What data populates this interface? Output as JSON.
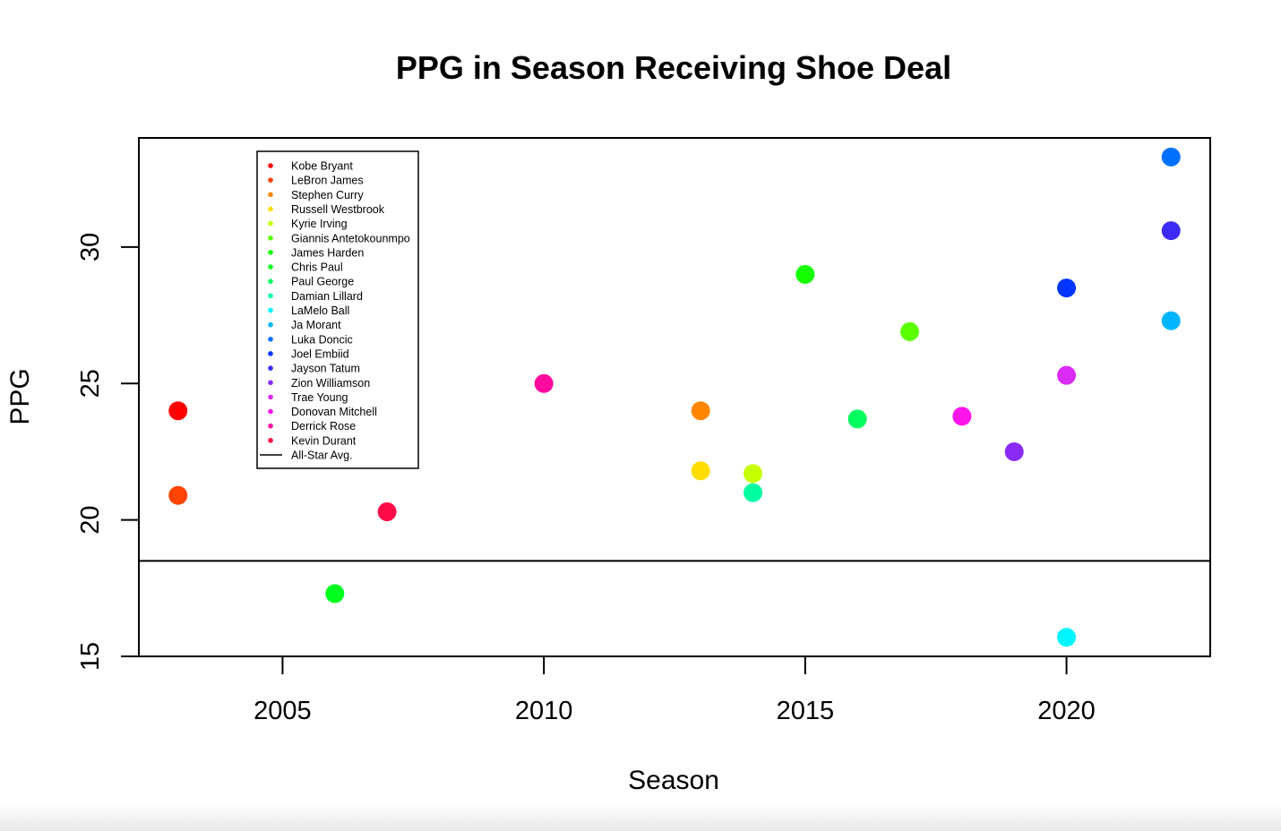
{
  "chart_data": {
    "type": "scatter",
    "title": "PPG in Season Receiving Shoe Deal",
    "xlabel": "Season",
    "ylabel": "PPG",
    "xlim": [
      2002.25,
      2022.75
    ],
    "ylim": [
      15,
      34
    ],
    "xticks": [
      2005,
      2010,
      2015,
      2020
    ],
    "yticks": [
      15,
      20,
      25,
      30
    ],
    "grid": false,
    "legend_position": "top-left",
    "reference_line": {
      "name": "All-Star Avg.",
      "y": 18.5,
      "color": "#000000"
    },
    "series": [
      {
        "name": "Kobe Bryant",
        "color": "#FF0000",
        "x": 2003,
        "y": 24.0
      },
      {
        "name": "LeBron James",
        "color": "#FF4300",
        "x": 2003,
        "y": 20.9
      },
      {
        "name": "Stephen Curry",
        "color": "#FF8600",
        "x": 2013,
        "y": 24.0
      },
      {
        "name": "Russell Westbrook",
        "color": "#FFDD00",
        "x": 2013,
        "y": 21.8
      },
      {
        "name": "Kyrie Irving",
        "color": "#C6FF00",
        "x": 2014,
        "y": 21.7
      },
      {
        "name": "Giannis Antetokounmpo",
        "color": "#5CFF00",
        "x": 2017,
        "y": 26.9
      },
      {
        "name": "James Harden",
        "color": "#14FF00",
        "x": 2015,
        "y": 29.0
      },
      {
        "name": "Chris Paul",
        "color": "#00FF1F",
        "x": 2006,
        "y": 17.3
      },
      {
        "name": "Paul George",
        "color": "#00FF5F",
        "x": 2016,
        "y": 23.7
      },
      {
        "name": "Damian Lillard",
        "color": "#00FFA3",
        "x": 2014,
        "y": 21.0
      },
      {
        "name": "LaMelo Ball",
        "color": "#00F6FF",
        "x": 2020,
        "y": 15.7
      },
      {
        "name": "Ja Morant",
        "color": "#00B5FF",
        "x": 2022,
        "y": 27.3
      },
      {
        "name": "Luka Doncic",
        "color": "#0070FF",
        "x": 2022,
        "y": 33.3
      },
      {
        "name": "Joel Embiid",
        "color": "#0036FF",
        "x": 2020,
        "y": 28.5
      },
      {
        "name": "Jayson Tatum",
        "color": "#3D2BF5",
        "x": 2022,
        "y": 30.6
      },
      {
        "name": "Zion Williamson",
        "color": "#8A2BF5",
        "x": 2019,
        "y": 22.5
      },
      {
        "name": "Trae Young",
        "color": "#DA2BF5",
        "x": 2020,
        "y": 25.3
      },
      {
        "name": "Donovan Mitchell",
        "color": "#FF14EC",
        "x": 2018,
        "y": 23.8
      },
      {
        "name": "Derrick Rose",
        "color": "#FF0A9E",
        "x": 2010,
        "y": 25.0
      },
      {
        "name": "Kevin Durant",
        "color": "#FF0A4A",
        "x": 2007,
        "y": 20.3
      }
    ]
  }
}
